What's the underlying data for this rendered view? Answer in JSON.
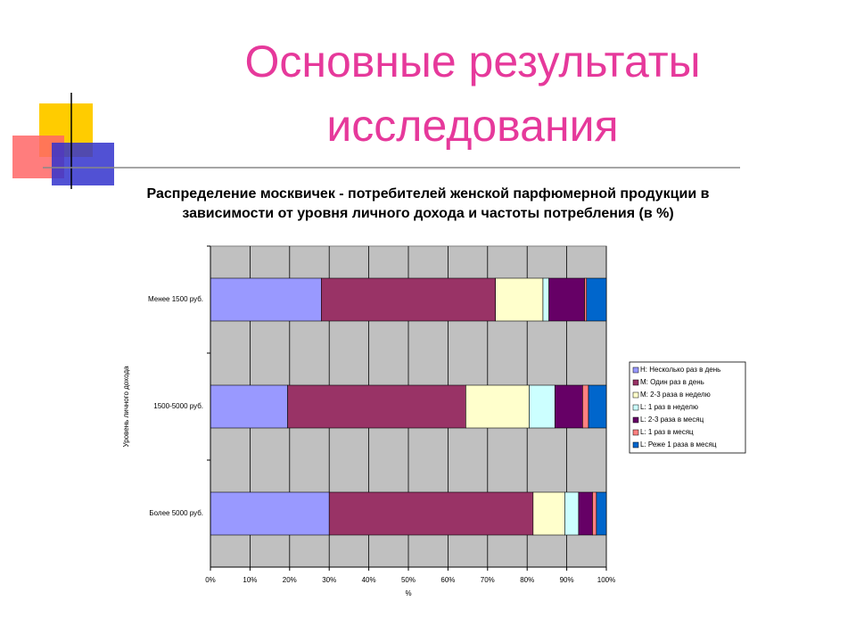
{
  "slide_title": [
    "Основные результаты",
    "исследования"
  ],
  "chart_data": {
    "type": "stacked-bar-horizontal",
    "title": [
      "Распределение москвичек - потребителей женской парфюмерной продукции в",
      "зависимости от уровня личного дохода и частоты потребления (в %)"
    ],
    "y_label": "Уровень личного дохода",
    "x_label": "%",
    "categories": [
      "Менее 1500 руб.",
      "1500-5000 руб.",
      "Более 5000 руб."
    ],
    "series": [
      {
        "name": "H: Несколько раз в день",
        "color": "#9999ff",
        "values": [
          28,
          19.5,
          30
        ]
      },
      {
        "name": "M: Один раз в день",
        "color": "#993366",
        "values": [
          44,
          45,
          51.5
        ]
      },
      {
        "name": "M: 2-3 раза в неделю",
        "color": "#ffffcc",
        "values": [
          12,
          16,
          8
        ]
      },
      {
        "name": "L: 1 раз в неделю",
        "color": "#ccffff",
        "values": [
          1.5,
          6.5,
          3.5
        ]
      },
      {
        "name": "L: 2-3 раза в месяц",
        "color": "#660066",
        "values": [
          9,
          7,
          3.5
        ]
      },
      {
        "name": "L: 1 раз в месяц",
        "color": "#ff8080",
        "values": [
          0.5,
          1.5,
          1
        ]
      },
      {
        "name": "L: Реже 1 раза в месяц",
        "color": "#0066cc",
        "values": [
          5,
          4.5,
          2.5
        ]
      }
    ],
    "xlim": [
      0,
      100
    ],
    "xticks": [
      {
        "value": 0,
        "label": "0%"
      },
      {
        "value": 10,
        "label": "10%"
      },
      {
        "value": 20,
        "label": "20%"
      },
      {
        "value": 30,
        "label": "30%"
      },
      {
        "value": 40,
        "label": "40%"
      },
      {
        "value": 50,
        "label": "50%"
      },
      {
        "value": 60,
        "label": "60%"
      },
      {
        "value": 70,
        "label": "70%"
      },
      {
        "value": 80,
        "label": "80%"
      },
      {
        "value": 90,
        "label": "90%"
      },
      {
        "value": 100,
        "label": "100%"
      }
    ],
    "grid": true,
    "legend": "right"
  }
}
